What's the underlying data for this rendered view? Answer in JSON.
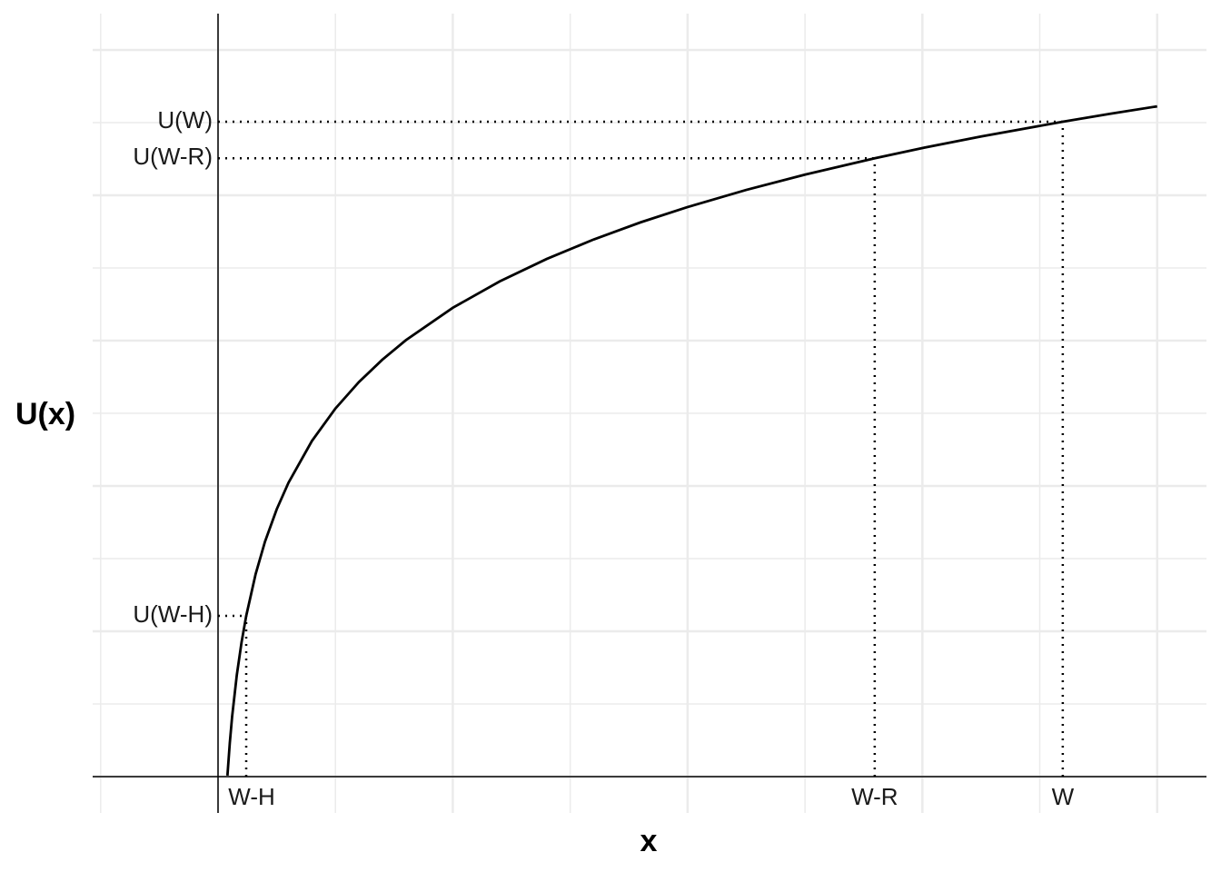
{
  "chart_data": {
    "type": "line",
    "xlabel": "x",
    "ylabel": "U(x)",
    "x": [
      0.04,
      0.05,
      0.06,
      0.08,
      0.1,
      0.12,
      0.16,
      0.2,
      0.25,
      0.3,
      0.4,
      0.5,
      0.6,
      0.7,
      0.8,
      1,
      1.2,
      1.4,
      1.6,
      1.8,
      2,
      2.25,
      2.5,
      2.797,
      3,
      3.25,
      3.598,
      3.8,
      4
    ],
    "series": [
      {
        "color": "#000000",
        "values": [
          0.007,
          0.23,
          0.413,
          0.7,
          0.923,
          1.106,
          1.393,
          1.617,
          1.84,
          2.022,
          2.31,
          2.533,
          2.715,
          2.869,
          3.003,
          3.226,
          3.408,
          3.562,
          3.696,
          3.814,
          3.919,
          4.037,
          4.142,
          4.255,
          4.325,
          4.405,
          4.506,
          4.561,
          4.612
        ]
      }
    ],
    "xlim": [
      -0.534,
      4.21
    ],
    "ylim": [
      -0.25,
      5.25
    ],
    "xticks": [
      {
        "value": 0.12,
        "label": "W-H"
      },
      {
        "value": 2.797,
        "label": "W-R"
      },
      {
        "value": 3.598,
        "label": "W"
      }
    ],
    "yticks": [
      {
        "value": 1.106,
        "label": "U(W-H)"
      },
      {
        "value": 4.255,
        "label": "U(W-R)"
      },
      {
        "value": 4.506,
        "label": "U(W)"
      }
    ],
    "x_gridlines": [
      -0.5,
      0,
      0.5,
      1,
      1.5,
      2,
      2.5,
      3,
      3.5,
      4
    ],
    "y_gridlines": [
      0,
      0.5,
      1,
      1.5,
      2,
      2.5,
      3,
      3.5,
      4,
      4.5,
      5
    ],
    "grid": true
  }
}
